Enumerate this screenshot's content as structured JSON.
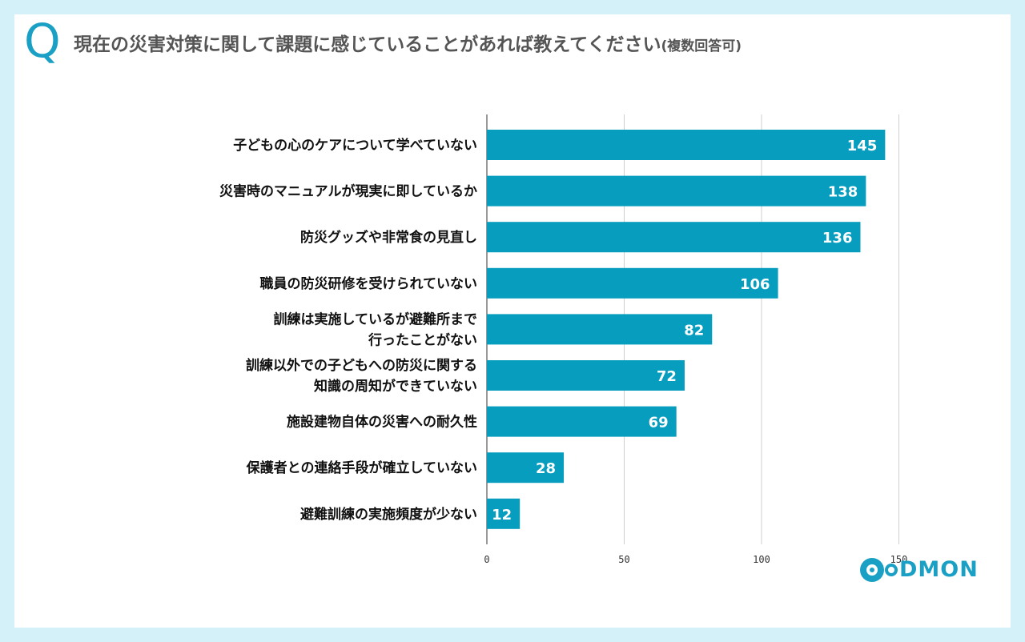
{
  "header": {
    "q_mark": "Q",
    "question": "現在の災害対策に関して課題に感じていることがあれば教えてください",
    "note": "(複数回答可)"
  },
  "logo": {
    "text": "DMON"
  },
  "colors": {
    "bar": "#079dbf",
    "background": "#d4f1f9",
    "accent": "#1aa0c4"
  },
  "chart_data": {
    "type": "bar",
    "orientation": "horizontal",
    "categories": [
      [
        "子どもの心のケアについて学べていない"
      ],
      [
        "災害時のマニュアルが現実に即しているか"
      ],
      [
        "防災グッズや非常食の見直し"
      ],
      [
        "職員の防災研修を受けられていない"
      ],
      [
        "訓練は実施しているが避難所まで",
        "行ったことがない"
      ],
      [
        "訓練以外での子どもへの防災に関する",
        "知識の周知ができていない"
      ],
      [
        "施設建物自体の災害への耐久性"
      ],
      [
        "保護者との連絡手段が確立していない"
      ],
      [
        "避難訓練の実施頻度が少ない"
      ]
    ],
    "values": [
      145,
      138,
      136,
      106,
      82,
      72,
      69,
      28,
      12
    ],
    "xlim": [
      0,
      170
    ],
    "xticks": [
      0,
      50,
      100,
      150
    ],
    "grid": true,
    "data_labels": true,
    "legend": "none"
  }
}
